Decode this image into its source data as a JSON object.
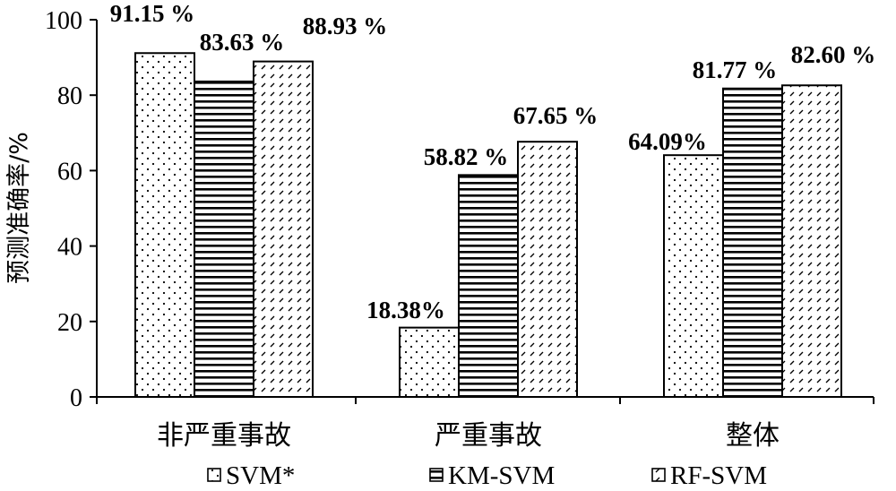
{
  "chart_data": {
    "type": "bar",
    "title": "",
    "xlabel": "",
    "ylabel": "预测准确率/%",
    "ylim": [
      0,
      100
    ],
    "yticks": [
      0,
      20,
      40,
      60,
      80,
      100
    ],
    "grid": false,
    "legend_position": "bottom",
    "categories": [
      "非严重事故",
      "严重事故",
      "整体"
    ],
    "series": [
      {
        "name": "SVM*",
        "pattern": "dots",
        "values": [
          91.15,
          18.38,
          64.09
        ],
        "labels": [
          "91.15 %",
          "18.38%",
          "64.09%"
        ]
      },
      {
        "name": "KM-SVM",
        "pattern": "horizontal-lines",
        "values": [
          83.63,
          58.82,
          81.77
        ],
        "labels": [
          "83.63 %",
          "58.82 %",
          "81.77 %"
        ]
      },
      {
        "name": "RF-SVM",
        "pattern": "diagonal-hatch",
        "values": [
          88.93,
          67.65,
          82.6
        ],
        "labels": [
          "88.93 %",
          "67.65 %",
          "82.60 %"
        ]
      }
    ],
    "colors": {
      "stroke": "#000000",
      "fill": "#ffffff"
    }
  }
}
